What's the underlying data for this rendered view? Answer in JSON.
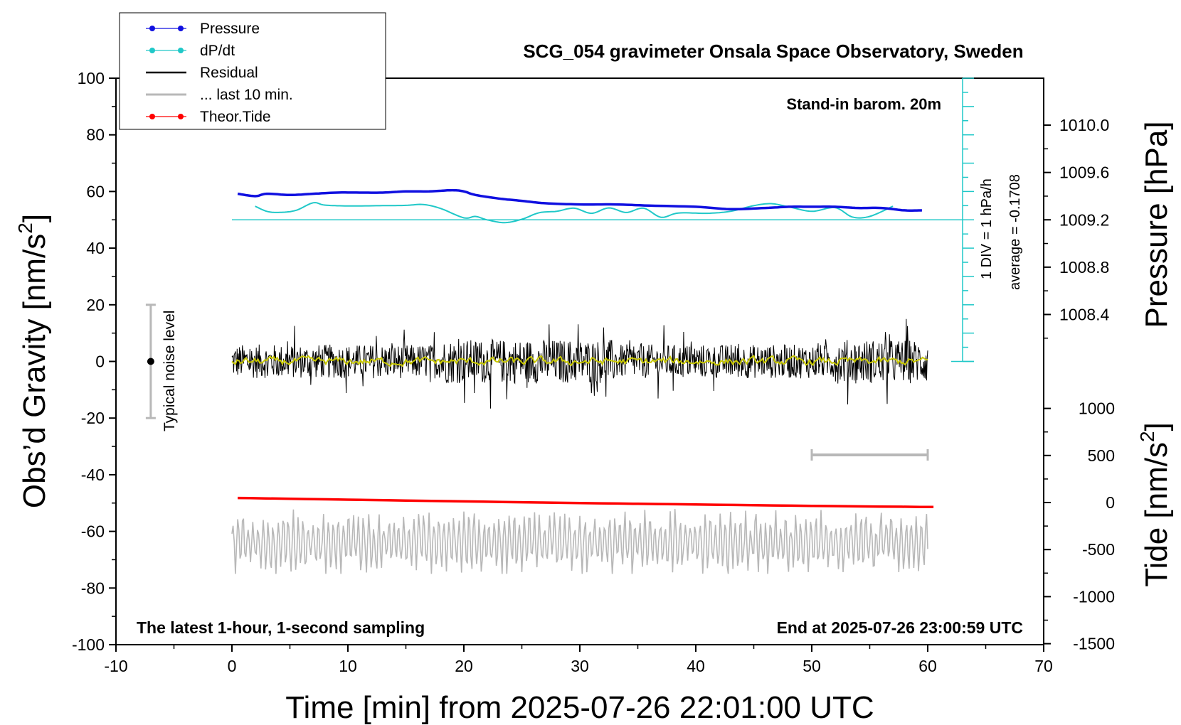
{
  "chart_data": {
    "type": "line",
    "title": "SCG_054 gravimeter Onsala Space Observatory, Sweden",
    "xlabel": "Time [min] from 2025-07-26 22:01:00 UTC",
    "ylabel_left_main": "Obs’d Gravity [nm/s",
    "ylabel_left_sup": "2",
    "ylabel_left_end": "]",
    "ylabel_right_pressure": "Pressure [hPa]",
    "ylabel_right_tide_main": "Tide [nm/s",
    "ylabel_right_tide_sup": "2",
    "ylabel_right_tide_end": "]",
    "xlim": [
      -10,
      70
    ],
    "xticks": [
      "-10",
      "0",
      "10",
      "20",
      "30",
      "40",
      "50",
      "60",
      "70"
    ],
    "ylim_gravity": [
      -100,
      100
    ],
    "yticks_gravity": [
      "100",
      "80",
      "60",
      "40",
      "20",
      "0",
      "-20",
      "-40",
      "-60",
      "-80",
      "-100"
    ],
    "pressure_ticks": [
      "1010.0",
      "1009.6",
      "1009.2",
      "1008.8",
      "1008.4"
    ],
    "tide_ticks": [
      "1000",
      "500",
      "0",
      "-500",
      "-1000",
      "-1500"
    ],
    "annotations": {
      "barometer": "Stand-in barom. 20m",
      "dpdt_scale": "1 DIV = 1 hPa/h",
      "dpdt_average": "average = -0.1708",
      "noise": "Typical noise level",
      "sampling": "The latest 1-hour, 1-second sampling",
      "end_time": "End at 2025-07-26 23:00:59 UTC"
    },
    "legend": [
      {
        "label": "Pressure",
        "color": "#1010e0",
        "marker": true
      },
      {
        "label": "dP/dt",
        "color": "#20c8c8",
        "marker": true
      },
      {
        "label": "Residual",
        "color": "#000000",
        "marker": false
      },
      {
        "label": "... last 10 min.",
        "color": "#b8b8b8",
        "marker": false
      },
      {
        "label": "Theor.Tide",
        "color": "#ff0000",
        "marker": true
      }
    ],
    "series": [
      {
        "name": "Pressure",
        "unit": "hPa",
        "color": "#1010e0",
        "x": [
          0.5,
          2,
          3,
          5,
          7,
          9,
          11,
          13,
          15,
          17,
          19,
          20,
          21,
          23,
          25,
          27,
          30,
          33,
          36,
          40,
          43,
          46,
          48,
          50,
          52,
          54,
          56,
          58,
          59.5
        ],
        "values": [
          1009.42,
          1009.4,
          1009.42,
          1009.41,
          1009.42,
          1009.43,
          1009.43,
          1009.43,
          1009.44,
          1009.44,
          1009.45,
          1009.44,
          1009.41,
          1009.38,
          1009.36,
          1009.34,
          1009.33,
          1009.33,
          1009.32,
          1009.31,
          1009.29,
          1009.3,
          1009.31,
          1009.31,
          1009.31,
          1009.3,
          1009.3,
          1009.28,
          1009.28
        ]
      },
      {
        "name": "dP/dt",
        "unit": "hPa/h",
        "color": "#20c8c8",
        "zero_line": 50,
        "x": [
          2,
          3,
          4,
          5.5,
          7,
          8,
          10,
          13,
          15,
          16.5,
          18,
          20,
          21,
          22,
          23.5,
          25,
          26.5,
          28,
          29.5,
          31,
          32.5,
          34,
          35.5,
          37,
          38.5,
          41,
          43,
          45,
          46.5,
          48,
          50,
          52,
          53.5,
          55,
          57
        ],
        "values": [
          4.8,
          3.0,
          2.6,
          3.3,
          6.0,
          5.2,
          4.9,
          5.0,
          5.1,
          5.4,
          4.0,
          0.7,
          1.2,
          0.0,
          -1.0,
          0.2,
          2.5,
          3.0,
          4.1,
          2.3,
          4.2,
          2.6,
          4.1,
          0.9,
          2.4,
          2.3,
          3.0,
          5.0,
          5.7,
          4.6,
          3.0,
          4.3,
          1.0,
          1.2,
          4.8
        ]
      },
      {
        "name": "Residual",
        "unit": "nm/s2",
        "color": "#000000",
        "x_range": [
          0,
          60
        ],
        "approx_range": [
          -18,
          15
        ]
      },
      {
        "name": "... last 10 min.",
        "unit": "nm/s2",
        "color": "#b8b8b8",
        "x_range": [
          0,
          60
        ],
        "approx_center": -64,
        "approx_range": [
          -75,
          -50
        ]
      },
      {
        "name": "Theor.Tide",
        "unit": "nm/s2",
        "color": "#ff0000",
        "x": [
          0.5,
          10,
          20,
          30,
          40,
          50,
          60.5
        ],
        "values": [
          -48.2,
          -48.8,
          -49.4,
          -50.0,
          -50.5,
          -51.0,
          -51.4
        ]
      }
    ],
    "noise_level": {
      "x": -7,
      "center": 0,
      "range": [
        -20,
        20
      ]
    },
    "grey_bar": {
      "x": [
        50,
        60
      ],
      "y": -33
    }
  }
}
